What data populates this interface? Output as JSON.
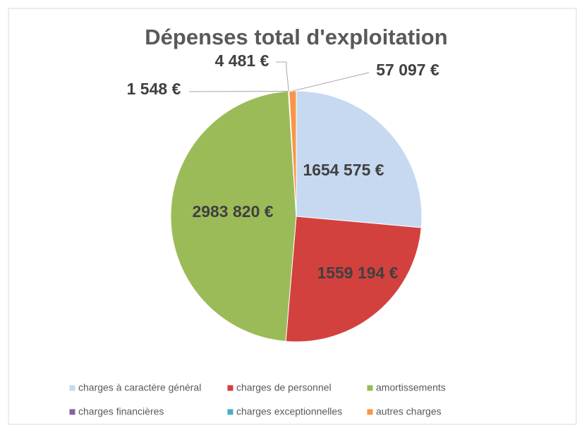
{
  "chart_data": {
    "type": "pie",
    "title": "Dépenses total d'exploitation",
    "categories": [
      "charges à caractère général",
      "charges de personnel",
      "amortissements",
      "charges financières",
      "charges exceptionnelles",
      "autres charges"
    ],
    "values": [
      1654575,
      1559194,
      2983820,
      1548,
      4481,
      57097
    ],
    "value_labels": [
      "1654 575 €",
      "1559 194 €",
      "2983 820 €",
      "1 548 €",
      "4 481 €",
      "57 097 €"
    ],
    "colors": [
      "#c6d9f1",
      "#d2413e",
      "#9bbb59",
      "#8064a2",
      "#4bacc6",
      "#f79646"
    ],
    "legend": "bottom"
  }
}
